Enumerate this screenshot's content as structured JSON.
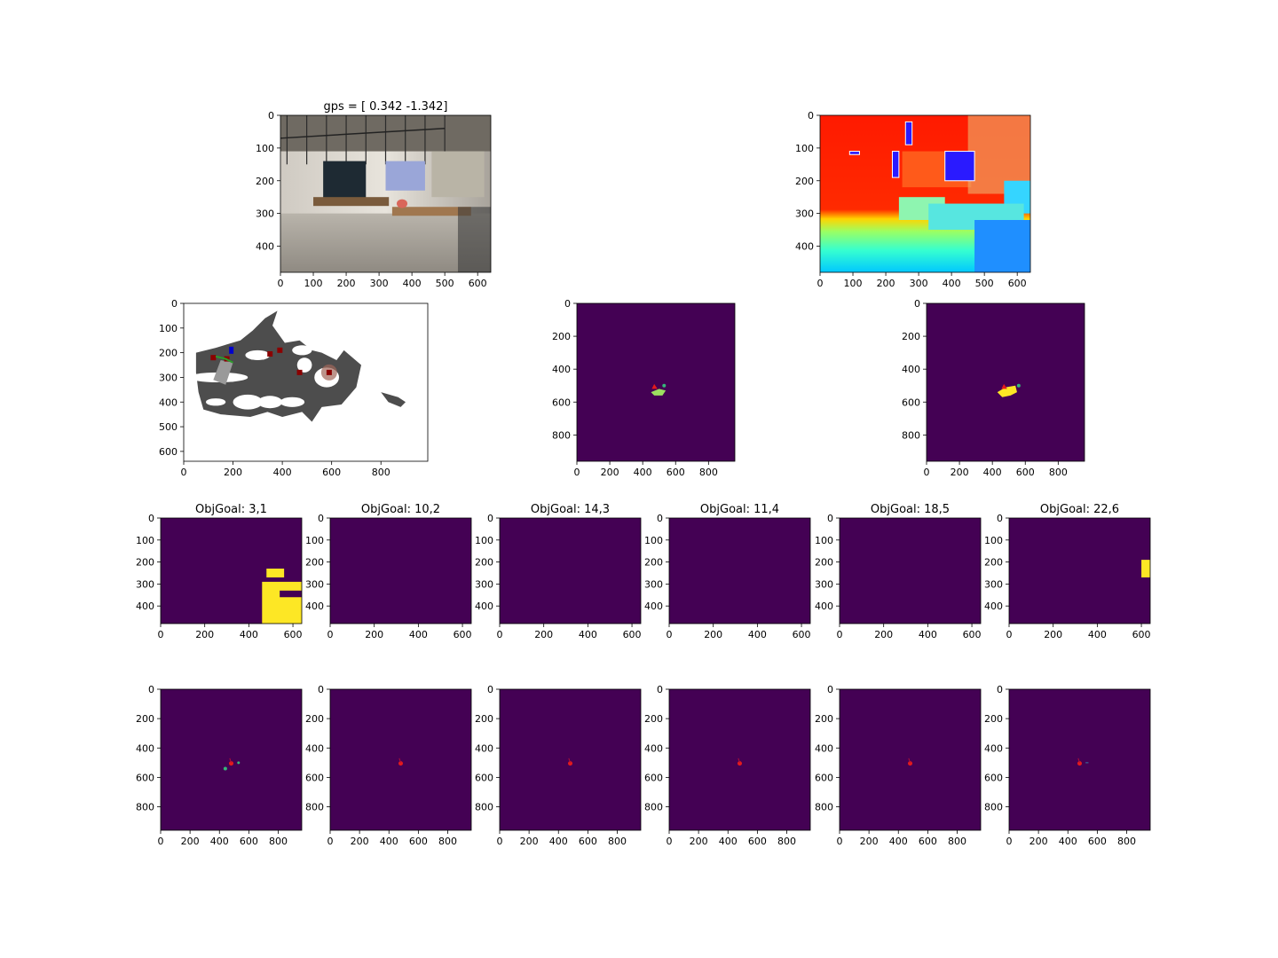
{
  "figure": {
    "background": "#ffffff",
    "colors": {
      "viridis_low": "#440154",
      "viridis_high": "#fde725",
      "obstacle": "#4d4d4d",
      "explored": "#9a9a9a",
      "agent": "#e41a1c",
      "goal_marker": "#8b0000",
      "trajectory": "#0000cc"
    }
  },
  "chart_data": [
    {
      "id": "rgb",
      "type": "image",
      "content": "rgb-camera-view",
      "title": "gps = [ 0.342 -1.342]",
      "xticks": [
        "0",
        "100",
        "200",
        "300",
        "400",
        "500",
        "600"
      ],
      "yticks": [
        "0",
        "100",
        "200",
        "300",
        "400"
      ],
      "xlim": [
        0,
        640
      ],
      "ylim": [
        480,
        0
      ]
    },
    {
      "id": "depth",
      "type": "heatmap",
      "colormap": "jet",
      "content": "depth-map",
      "title": "",
      "xticks": [
        "0",
        "100",
        "200",
        "300",
        "400",
        "500",
        "600"
      ],
      "yticks": [
        "0",
        "100",
        "200",
        "300",
        "400"
      ],
      "xlim": [
        0,
        640
      ],
      "ylim": [
        480,
        0
      ]
    },
    {
      "id": "topdown",
      "type": "image",
      "content": "top-down-occupancy-map",
      "title": "",
      "xticks": [
        "0",
        "200",
        "400",
        "600",
        "800"
      ],
      "yticks": [
        "0",
        "100",
        "200",
        "300",
        "400",
        "500",
        "600"
      ],
      "xlim": [
        0,
        990
      ],
      "ylim": [
        640,
        0
      ]
    },
    {
      "id": "local-map-1",
      "type": "heatmap",
      "colormap": "viridis",
      "content": "local-semantic-map",
      "title": "",
      "xticks": [
        "0",
        "200",
        "400",
        "600",
        "800"
      ],
      "yticks": [
        "0",
        "200",
        "400",
        "600",
        "800"
      ],
      "xlim": [
        0,
        960
      ],
      "ylim": [
        960,
        0
      ]
    },
    {
      "id": "local-map-2",
      "type": "heatmap",
      "colormap": "viridis",
      "content": "local-semantic-map",
      "title": "",
      "xticks": [
        "0",
        "200",
        "400",
        "600",
        "800"
      ],
      "yticks": [
        "0",
        "200",
        "400",
        "600",
        "800"
      ],
      "xlim": [
        0,
        960
      ],
      "ylim": [
        960,
        0
      ]
    },
    {
      "id": "goal-3-1",
      "type": "heatmap",
      "colormap": "viridis",
      "title": "ObjGoal: 3,1",
      "xticks": [
        "0",
        "200",
        "400",
        "600"
      ],
      "yticks": [
        "0",
        "100",
        "200",
        "300",
        "400"
      ],
      "xlim": [
        0,
        640
      ],
      "ylim": [
        480,
        0
      ]
    },
    {
      "id": "goal-10-2",
      "type": "heatmap",
      "colormap": "viridis",
      "title": "ObjGoal: 10,2",
      "xticks": [
        "0",
        "200",
        "400",
        "600"
      ],
      "yticks": [
        "0",
        "100",
        "200",
        "300",
        "400"
      ],
      "xlim": [
        0,
        640
      ],
      "ylim": [
        480,
        0
      ]
    },
    {
      "id": "goal-14-3",
      "type": "heatmap",
      "colormap": "viridis",
      "title": "ObjGoal: 14,3",
      "xticks": [
        "0",
        "200",
        "400",
        "600"
      ],
      "yticks": [
        "0",
        "100",
        "200",
        "300",
        "400"
      ],
      "xlim": [
        0,
        640
      ],
      "ylim": [
        480,
        0
      ]
    },
    {
      "id": "goal-11-4",
      "type": "heatmap",
      "colormap": "viridis",
      "title": "ObjGoal: 11,4",
      "xticks": [
        "0",
        "200",
        "400",
        "600"
      ],
      "yticks": [
        "0",
        "100",
        "200",
        "300",
        "400"
      ],
      "xlim": [
        0,
        640
      ],
      "ylim": [
        480,
        0
      ]
    },
    {
      "id": "goal-18-5",
      "type": "heatmap",
      "colormap": "viridis",
      "title": "ObjGoal: 18,5",
      "xticks": [
        "0",
        "200",
        "400",
        "600"
      ],
      "yticks": [
        "0",
        "100",
        "200",
        "300",
        "400"
      ],
      "xlim": [
        0,
        640
      ],
      "ylim": [
        480,
        0
      ]
    },
    {
      "id": "goal-22-6",
      "type": "heatmap",
      "colormap": "viridis",
      "title": "ObjGoal: 22,6",
      "xticks": [
        "0",
        "200",
        "400",
        "600"
      ],
      "yticks": [
        "0",
        "100",
        "200",
        "300",
        "400"
      ],
      "xlim": [
        0,
        640
      ],
      "ylim": [
        480,
        0
      ]
    },
    {
      "id": "map-1",
      "type": "heatmap",
      "colormap": "viridis",
      "title": "",
      "xticks": [
        "0",
        "200",
        "400",
        "600",
        "800"
      ],
      "yticks": [
        "0",
        "200",
        "400",
        "600",
        "800"
      ],
      "xlim": [
        0,
        960
      ],
      "ylim": [
        960,
        0
      ]
    },
    {
      "id": "map-2",
      "type": "heatmap",
      "colormap": "viridis",
      "title": "",
      "xticks": [
        "0",
        "200",
        "400",
        "600",
        "800"
      ],
      "yticks": [
        "0",
        "200",
        "400",
        "600",
        "800"
      ],
      "xlim": [
        0,
        960
      ],
      "ylim": [
        960,
        0
      ]
    },
    {
      "id": "map-3",
      "type": "heatmap",
      "colormap": "viridis",
      "title": "",
      "xticks": [
        "0",
        "200",
        "400",
        "600",
        "800"
      ],
      "yticks": [
        "0",
        "200",
        "400",
        "600",
        "800"
      ],
      "xlim": [
        0,
        960
      ],
      "ylim": [
        960,
        0
      ]
    },
    {
      "id": "map-4",
      "type": "heatmap",
      "colormap": "viridis",
      "title": "",
      "xticks": [
        "0",
        "200",
        "400",
        "600",
        "800"
      ],
      "yticks": [
        "0",
        "200",
        "400",
        "600",
        "800"
      ],
      "xlim": [
        0,
        960
      ],
      "ylim": [
        960,
        0
      ]
    },
    {
      "id": "map-5",
      "type": "heatmap",
      "colormap": "viridis",
      "title": "",
      "xticks": [
        "0",
        "200",
        "400",
        "600",
        "800"
      ],
      "yticks": [
        "0",
        "200",
        "400",
        "600",
        "800"
      ],
      "xlim": [
        0,
        960
      ],
      "ylim": [
        960,
        0
      ]
    },
    {
      "id": "map-6",
      "type": "heatmap",
      "colormap": "viridis",
      "title": "",
      "xticks": [
        "0",
        "200",
        "400",
        "600",
        "800"
      ],
      "yticks": [
        "0",
        "200",
        "400",
        "600",
        "800"
      ],
      "xlim": [
        0,
        960
      ],
      "ylim": [
        960,
        0
      ]
    }
  ]
}
